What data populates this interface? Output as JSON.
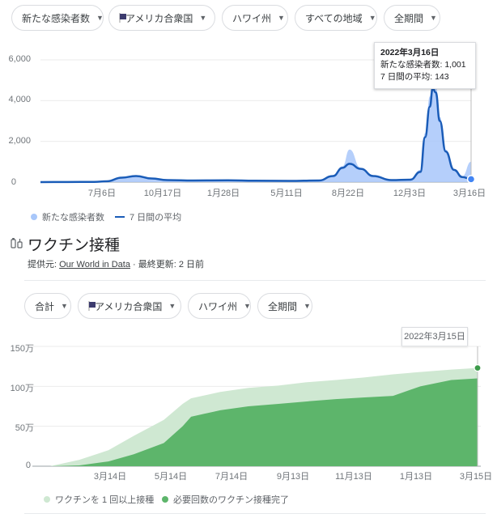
{
  "cases_filters": {
    "metric": "新たな感染者数",
    "country": "アメリカ合衆国",
    "region": "ハワイ州",
    "area": "すべての地域",
    "period": "全期間"
  },
  "cases_chart": {
    "y_ticks": [
      "6,000",
      "4,000",
      "2,000",
      "0"
    ],
    "x_ticks": [
      "7月6日",
      "10月17日",
      "1月28日",
      "5月11日",
      "8月22日",
      "12月3日",
      "3月16日"
    ],
    "legend_new": "新たな感染者数",
    "legend_avg": "7 日間の平均",
    "tooltip": {
      "title": "2022年3月16日",
      "new_line": "新たな感染者数: 1,001",
      "avg_line": "7 日間の平均: 143"
    },
    "colors": {
      "bars": "#a8c7fa",
      "line": "#1a5cb8"
    }
  },
  "chart_data": [
    {
      "type": "area",
      "title": "",
      "ylim": [
        0,
        6000
      ],
      "x": [
        "2020-03-16",
        "2020-05-01",
        "2020-06-15",
        "2020-07-06",
        "2020-08-01",
        "2020-08-25",
        "2020-09-20",
        "2020-10-17",
        "2020-12-01",
        "2021-01-28",
        "2021-03-15",
        "2021-05-11",
        "2021-07-01",
        "2021-07-25",
        "2021-08-10",
        "2021-08-22",
        "2021-09-10",
        "2021-10-01",
        "2021-11-01",
        "2021-12-03",
        "2021-12-20",
        "2021-12-28",
        "2022-01-05",
        "2022-01-10",
        "2022-01-15",
        "2022-01-22",
        "2022-02-01",
        "2022-02-15",
        "2022-03-01",
        "2022-03-16"
      ],
      "series": [
        {
          "name": "7 日間の平均",
          "values": [
            0,
            5,
            10,
            40,
            220,
            300,
            180,
            100,
            80,
            90,
            70,
            60,
            80,
            300,
            700,
            900,
            650,
            300,
            100,
            120,
            500,
            2200,
            3700,
            4600,
            4400,
            3000,
            1500,
            600,
            250,
            143
          ]
        },
        {
          "name": "新たな感染者数",
          "values": [
            0,
            5,
            10,
            50,
            250,
            330,
            200,
            110,
            90,
            100,
            80,
            70,
            90,
            330,
            780,
            1600,
            700,
            330,
            110,
            130,
            600,
            2400,
            4200,
            5500,
            4800,
            3200,
            1600,
            650,
            280,
            1001
          ]
        }
      ]
    },
    {
      "type": "area",
      "title": "",
      "ylim": [
        0,
        1500000
      ],
      "x": [
        "2020-12-15",
        "2021-01-15",
        "2021-02-15",
        "2021-03-14",
        "2021-04-15",
        "2021-05-05",
        "2021-05-14",
        "2021-06-14",
        "2021-07-14",
        "2021-08-15",
        "2021-09-13",
        "2021-10-15",
        "2021-11-13",
        "2021-12-15",
        "2022-01-13",
        "2022-02-15",
        "2022-03-15"
      ],
      "series": [
        {
          "name": "ワクチンを 1 回以上接種",
          "values": [
            0,
            80000,
            200000,
            380000,
            580000,
            780000,
            850000,
            930000,
            980000,
            1010000,
            1050000,
            1080000,
            1110000,
            1150000,
            1180000,
            1210000,
            1230000
          ]
        },
        {
          "name": "必要回数のワクチン接種完了",
          "values": [
            0,
            10000,
            60000,
            150000,
            290000,
            500000,
            620000,
            700000,
            750000,
            780000,
            810000,
            840000,
            860000,
            880000,
            1000000,
            1080000,
            1100000
          ]
        }
      ]
    }
  ],
  "vaccine_section": {
    "title": "ワクチン接種",
    "source_prefix": "提供元: ",
    "source_link": "Our World in Data",
    "source_suffix": " · 最終更新: 2 日前"
  },
  "vaccine_filters": {
    "metric": "合計",
    "country": "アメリカ合衆国",
    "region": "ハワイ州",
    "period": "全期間"
  },
  "vaccine_chart": {
    "y_ticks": [
      "150万",
      "100万",
      "50万",
      "0"
    ],
    "x_ticks": [
      "3月14日",
      "5月14日",
      "7月14日",
      "9月13日",
      "11月13日",
      "1月13日",
      "3月15日"
    ],
    "date_box": "2022年3月15日",
    "legend_one_dose": "ワクチンを 1 回以上接種",
    "legend_full": "必要回数のワクチン接種完了",
    "colors": {
      "one_dose": "#cfe8d2",
      "full": "#5db56b",
      "marker": "#3c9a4a"
    }
  }
}
